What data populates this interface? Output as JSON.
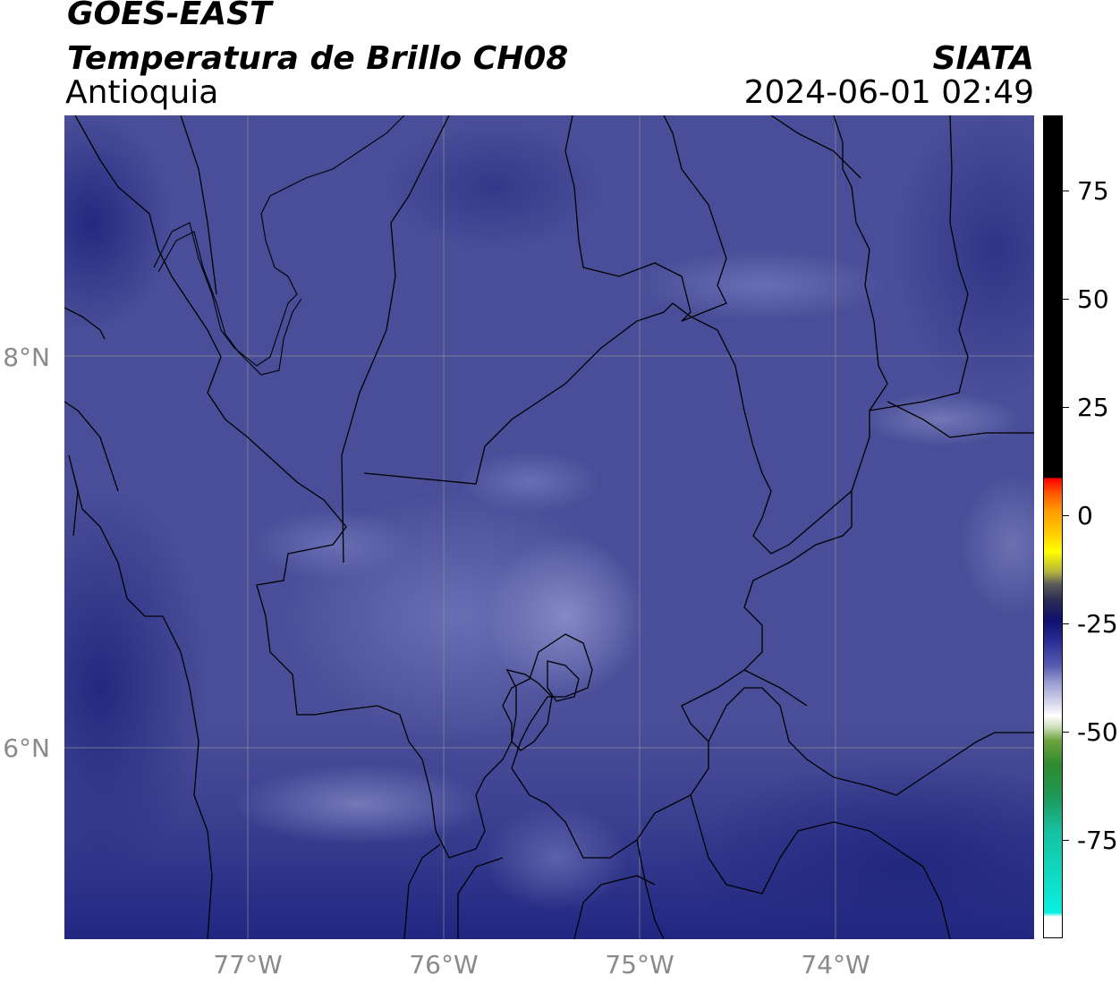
{
  "header": {
    "satellite": "GOES-EAST",
    "product": "Temperatura de Brillo CH08",
    "region": "Antioquia",
    "org": "SIATA",
    "datetime": "2024-06-01 02:49"
  },
  "axes": {
    "lat_labels": [
      "8°N",
      "6°N"
    ],
    "lon_labels": [
      "77°W",
      "76°W",
      "75°W",
      "74°W"
    ]
  },
  "colorbar": {
    "ticks": [
      "75",
      "50",
      "25",
      "0",
      "-25",
      "-50",
      "-75"
    ]
  },
  "colors": {
    "background_fill": "#4a4e98",
    "ocean_deep": "#2a2f86",
    "cloud_light": "#7c80c0",
    "border": "#000000",
    "grid": "#9a9a9a"
  }
}
